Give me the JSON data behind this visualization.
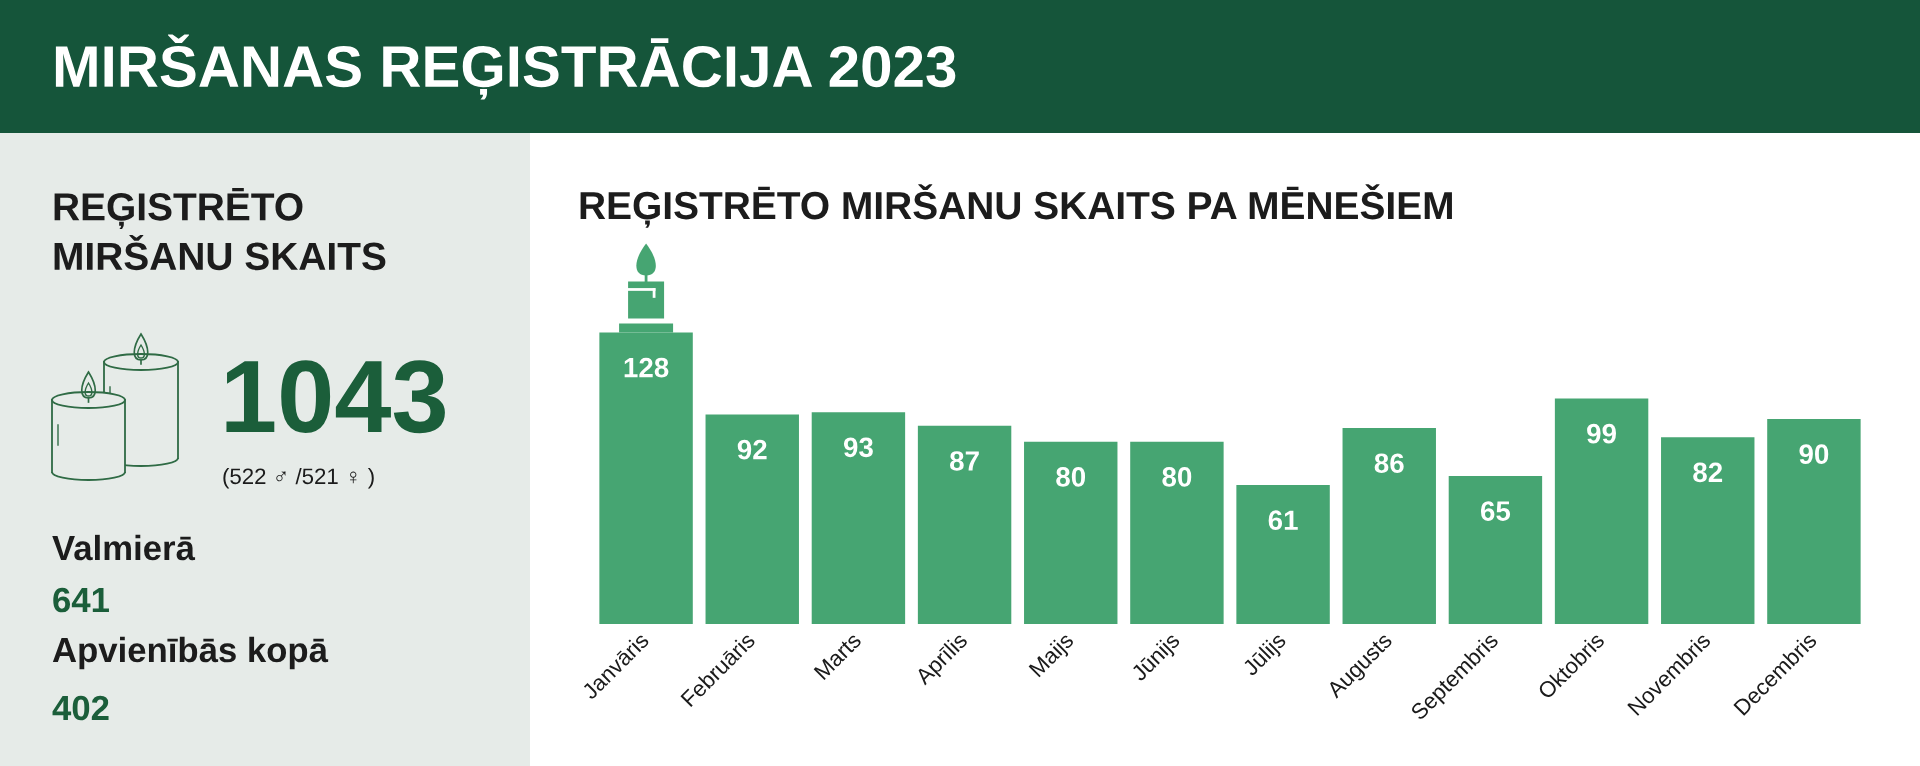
{
  "chart_data": [
    {
      "type": "other",
      "title": "MIRŠANAS REĢISTRĀCIJA 2023",
      "subtitle": "REĢISTRĒTO MIRŠANU SKAITS",
      "annotations": [
        "1043",
        "(522 ♂ /521 ♀ )",
        "Valmierā",
        "641",
        "Apvienībās kopā",
        "402"
      ]
    },
    {
      "type": "bar",
      "title": "REĢISTRĒTO MIRŠANU SKAITS PA MĒNEŠIEM",
      "categories": [
        "Janvāris",
        "Februāris",
        "Marts",
        "Aprīlis",
        "Maijs",
        "Jūnijs",
        "Jūlijs",
        "Augusts",
        "Septembris",
        "Oktobris",
        "Novembris",
        "Decembris"
      ],
      "values": [
        128,
        92,
        93,
        87,
        80,
        80,
        61,
        86,
        65,
        99,
        82,
        90
      ],
      "color": "#46a572",
      "data_labels": true
    }
  ]
}
